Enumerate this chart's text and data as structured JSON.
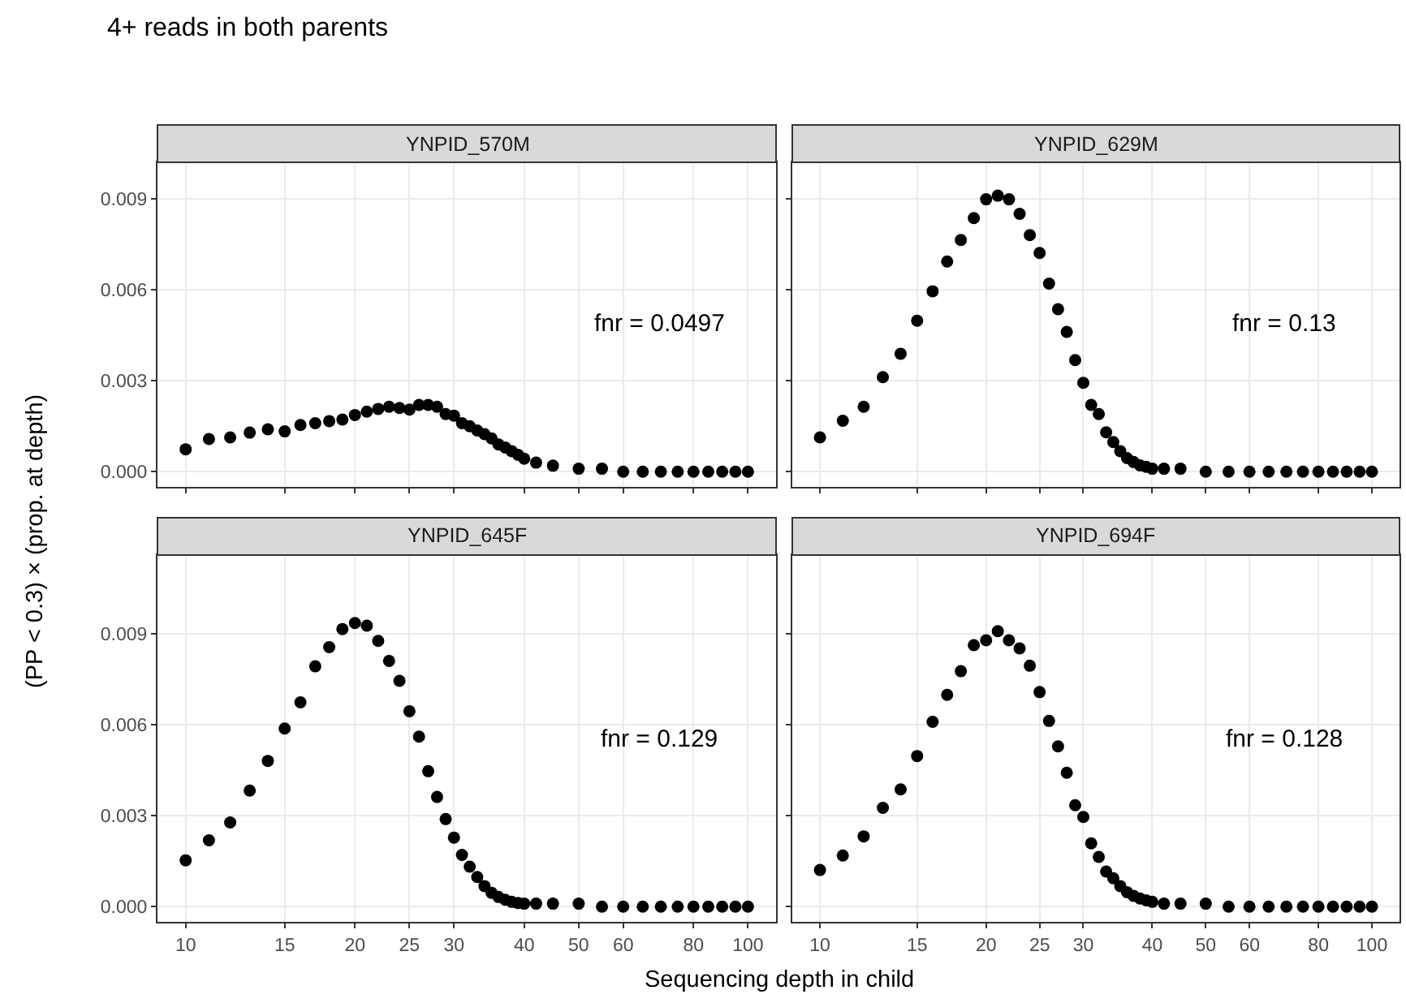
{
  "chart_data": [
    {
      "type": "scatter",
      "title": "YNPID_570M",
      "subtitle": "4+ reads in both parents",
      "ylabel": "(PP < 0.3) × (prop. at depth)",
      "annotations": [
        "fnr = 0.0497"
      ],
      "color": "#000000",
      "marker": "circle",
      "grid": true,
      "legend": false,
      "log": "x",
      "tick_labels": "y",
      "xlim": [
        8.91,
        112.2
      ],
      "xticks": [
        10,
        15,
        20,
        25,
        30,
        40,
        50,
        60,
        80,
        100
      ],
      "ylim": [
        -0.0005,
        0.0102
      ],
      "yticks": [
        {
          "value": 0,
          "label": "0.000"
        },
        {
          "value": 0.003,
          "label": "0.003"
        },
        {
          "value": 0.006,
          "label": "0.006"
        },
        {
          "value": 0.009,
          "label": "0.009"
        }
      ],
      "x": [
        10,
        11,
        12,
        13,
        14,
        15,
        16,
        17,
        18,
        19,
        20,
        21,
        22,
        23,
        24,
        25,
        26,
        27,
        28,
        29,
        30,
        31,
        32,
        33,
        34,
        35,
        36,
        37,
        38,
        39,
        40,
        42,
        45,
        50,
        55,
        60,
        65,
        70,
        75,
        80,
        85,
        90,
        95,
        100
      ],
      "values": [
        0.00074,
        0.00108,
        0.00113,
        0.00129,
        0.0014,
        0.00133,
        0.00154,
        0.0016,
        0.00167,
        0.00172,
        0.00187,
        0.00198,
        0.00207,
        0.00214,
        0.0021,
        0.00205,
        0.0022,
        0.0022,
        0.00214,
        0.0019,
        0.00185,
        0.0016,
        0.0015,
        0.00136,
        0.00124,
        0.0011,
        0.0009,
        0.0008,
        0.00068,
        0.00056,
        0.00043,
        0.0003,
        0.0002,
        0.0001,
        0.0001,
        0,
        0,
        0,
        0,
        0,
        0,
        0,
        0,
        0
      ]
    },
    {
      "type": "scatter",
      "title": "YNPID_629M",
      "annotations": [
        "fnr = 0.13"
      ],
      "color": "#000000",
      "marker": "circle",
      "grid": true,
      "legend": false,
      "log": "x",
      "tick_labels": false,
      "xlim": [
        8.91,
        112.2
      ],
      "xticks": [
        10,
        15,
        20,
        25,
        30,
        40,
        50,
        60,
        80,
        100
      ],
      "ylim": [
        -0.0005,
        0.0102
      ],
      "yticks": [
        0,
        0.003,
        0.006,
        0.009
      ],
      "x": [
        10,
        11,
        12,
        13,
        14,
        15,
        16,
        17,
        18,
        19,
        20,
        21,
        22,
        23,
        24,
        25,
        26,
        27,
        28,
        29,
        30,
        31,
        32,
        33,
        34,
        35,
        36,
        37,
        38,
        39,
        40,
        42,
        45,
        50,
        55,
        60,
        65,
        70,
        75,
        80,
        85,
        90,
        95,
        100
      ],
      "values": [
        0.00113,
        0.00168,
        0.00214,
        0.00312,
        0.00389,
        0.00498,
        0.00595,
        0.00693,
        0.00764,
        0.00836,
        0.00898,
        0.0091,
        0.00898,
        0.0085,
        0.0078,
        0.00721,
        0.0062,
        0.00536,
        0.00461,
        0.00368,
        0.00293,
        0.0022,
        0.0019,
        0.0013,
        0.00098,
        0.00068,
        0.00045,
        0.00032,
        0.00021,
        0.00016,
        0.0001,
        0.0001,
        0.0001,
        0,
        0,
        0,
        0,
        0,
        0,
        0,
        0,
        0,
        0,
        0
      ]
    },
    {
      "type": "scatter",
      "title": "YNPID_645F",
      "xlabel": "Sequencing depth in child",
      "annotations": [
        "fnr = 0.129"
      ],
      "color": "#000000",
      "marker": "circle",
      "grid": true,
      "legend": false,
      "log": "x",
      "xlim": [
        8.91,
        112.2
      ],
      "xticks": [
        10,
        15,
        20,
        25,
        30,
        40,
        50,
        60,
        80,
        100
      ],
      "ylim": [
        -0.0005,
        0.0116
      ],
      "yticks": [
        {
          "value": 0,
          "label": "0.000"
        },
        {
          "value": 0.003,
          "label": "0.003"
        },
        {
          "value": 0.006,
          "label": "0.006"
        },
        {
          "value": 0.009,
          "label": "0.009"
        }
      ],
      "x": [
        10,
        11,
        12,
        13,
        14,
        15,
        16,
        17,
        18,
        19,
        20,
        21,
        22,
        23,
        24,
        25,
        26,
        27,
        28,
        29,
        30,
        31,
        32,
        33,
        34,
        35,
        36,
        37,
        38,
        39,
        40,
        42,
        45,
        50,
        55,
        60,
        65,
        70,
        75,
        80,
        85,
        90,
        95,
        100
      ],
      "values": [
        0.00153,
        0.00219,
        0.00278,
        0.00383,
        0.00481,
        0.00588,
        0.00674,
        0.00793,
        0.00856,
        0.00916,
        0.00936,
        0.00927,
        0.00877,
        0.00811,
        0.00745,
        0.00645,
        0.00561,
        0.00447,
        0.00362,
        0.00289,
        0.00228,
        0.00171,
        0.00132,
        0.00098,
        0.00068,
        0.00046,
        0.00032,
        0.00023,
        0.00016,
        0.00012,
        0.0001,
        0.0001,
        0.0001,
        0.0001,
        0,
        0,
        0,
        0,
        0,
        0,
        0,
        0,
        0,
        0
      ]
    },
    {
      "type": "scatter",
      "title": "YNPID_694F",
      "annotations": [
        "fnr = 0.128"
      ],
      "color": "#000000",
      "marker": "circle",
      "grid": true,
      "legend": false,
      "log": "x",
      "tick_labels": "x",
      "xlim": [
        8.91,
        112.2
      ],
      "xticks": [
        10,
        15,
        20,
        25,
        30,
        40,
        50,
        60,
        80,
        100
      ],
      "ylim": [
        -0.0005,
        0.0116
      ],
      "yticks": [
        0,
        0.003,
        0.006,
        0.009
      ],
      "x": [
        10,
        11,
        12,
        13,
        14,
        15,
        16,
        17,
        18,
        19,
        20,
        21,
        22,
        23,
        24,
        25,
        26,
        27,
        28,
        29,
        30,
        31,
        32,
        33,
        34,
        35,
        36,
        37,
        38,
        39,
        40,
        42,
        45,
        50,
        55,
        60,
        65,
        70,
        75,
        80,
        85,
        90,
        95,
        100
      ],
      "values": [
        0.00121,
        0.00169,
        0.00232,
        0.00326,
        0.00387,
        0.00497,
        0.0061,
        0.00699,
        0.00777,
        0.00863,
        0.00879,
        0.00909,
        0.00879,
        0.00852,
        0.00795,
        0.00708,
        0.00613,
        0.00529,
        0.00442,
        0.00335,
        0.00296,
        0.00209,
        0.00164,
        0.00116,
        0.00094,
        0.00068,
        0.00048,
        0.00036,
        0.00027,
        0.00021,
        0.00016,
        0.0001,
        0.0001,
        0.0001,
        0,
        0,
        0,
        0,
        0,
        0,
        0,
        0,
        0,
        0
      ]
    }
  ]
}
